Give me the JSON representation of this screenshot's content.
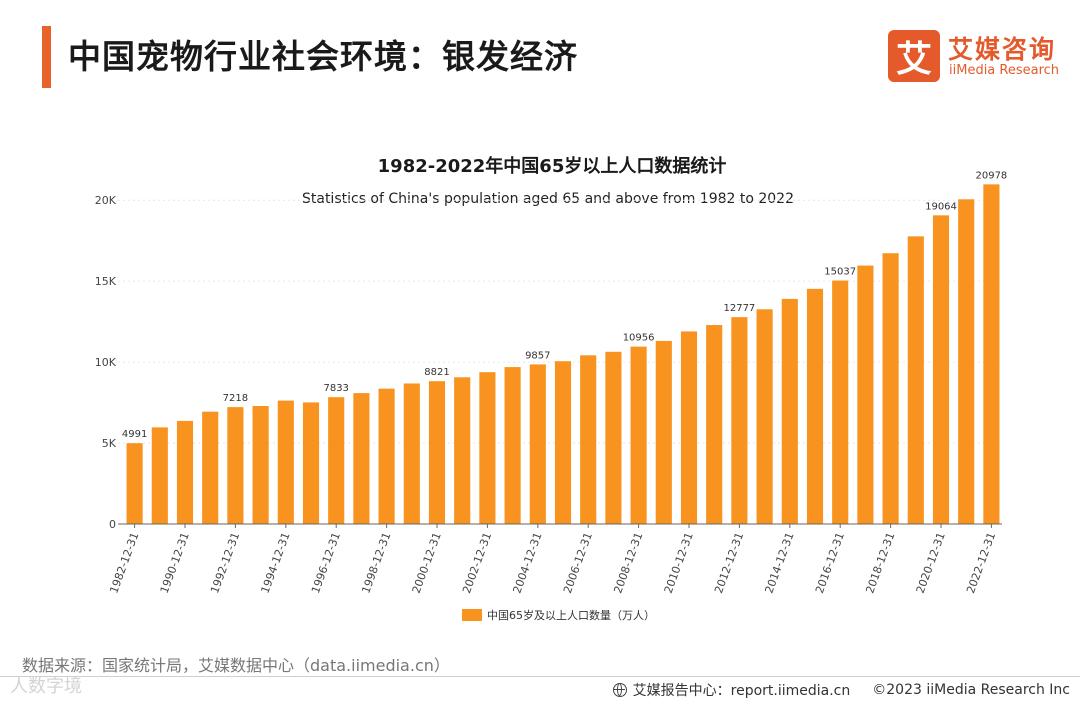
{
  "header": {
    "title": "中国宠物行业社会环境：银发经济",
    "logo_mark": "艾",
    "logo_cn": "艾媒咨询",
    "logo_en": "iiMedia Research"
  },
  "colors": {
    "accent": "#e8632a",
    "bar": "#f7931e",
    "logo": "#e55a2b"
  },
  "chart_data": {
    "type": "bar",
    "title": "1982-2022年中国65岁以上人口数据统计",
    "subtitle": "Statistics of China's population aged 65 and above from 1982 to 2022",
    "xlabel": "",
    "ylabel": "",
    "ylim": [
      0,
      21000
    ],
    "yticks": [
      {
        "value": 0,
        "label": "0"
      },
      {
        "value": 5000,
        "label": "5K"
      },
      {
        "value": 10000,
        "label": "10K"
      },
      {
        "value": 15000,
        "label": "15K"
      },
      {
        "value": 20000,
        "label": "20K"
      }
    ],
    "categories": [
      "1982-12-31",
      "1987-12-31",
      "1990-12-31",
      "1991-12-31",
      "1992-12-31",
      "1993-12-31",
      "1994-12-31",
      "1995-12-31",
      "1996-12-31",
      "1997-12-31",
      "1998-12-31",
      "1999-12-31",
      "2000-12-31",
      "2001-12-31",
      "2002-12-31",
      "2003-12-31",
      "2004-12-31",
      "2005-12-31",
      "2006-12-31",
      "2007-12-31",
      "2008-12-31",
      "2009-12-31",
      "2010-12-31",
      "2011-12-31",
      "2012-12-31",
      "2013-12-31",
      "2014-12-31",
      "2015-12-31",
      "2016-12-31",
      "2017-12-31",
      "2018-12-31",
      "2019-12-31",
      "2020-12-31",
      "2021-12-31",
      "2022-12-31"
    ],
    "shown_tick_labels": [
      "1982-12-31",
      "1990-12-31",
      "1992-12-31",
      "1994-12-31",
      "1996-12-31",
      "1998-12-31",
      "2000-12-31",
      "2002-12-31",
      "2004-12-31",
      "2006-12-31",
      "2008-12-31",
      "2010-12-31",
      "2012-12-31",
      "2014-12-31",
      "2016-12-31",
      "2018-12-31",
      "2020-12-31",
      "2022-12-31"
    ],
    "series": [
      {
        "name": "中国65岁及以上人口数量（万人）",
        "values": [
          4991,
          5968,
          6368,
          6938,
          7218,
          7289,
          7622,
          7510,
          7833,
          8085,
          8359,
          8679,
          8821,
          9062,
          9377,
          9692,
          9857,
          10055,
          10419,
          10636,
          10956,
          11307,
          11894,
          12288,
          12777,
          13262,
          13902,
          14524,
          15037,
          15961,
          16724,
          17767,
          19064,
          20056,
          20978
        ],
        "data_labels": {
          "1982-12-31": "4991",
          "1992-12-31": "7218",
          "1996-12-31": "7833",
          "2000-12-31": "8821",
          "2004-12-31": "9857",
          "2008-12-31": "10956",
          "2012-12-31": "12777",
          "2016-12-31": "15037",
          "2020-12-31": "19064",
          "2022-12-31": "20978"
        }
      }
    ],
    "legend": "bottom-center",
    "grid": true
  },
  "footer": {
    "source": "数据来源：国家统计局，艾媒数据中心（data.iimedia.cn）",
    "report": "艾媒报告中心：report.iimedia.cn",
    "copyright": "©2023  iiMedia Research  Inc",
    "watermark": "人数字境"
  }
}
